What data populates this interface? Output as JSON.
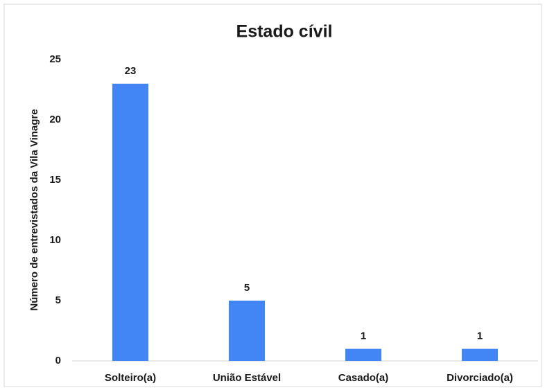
{
  "chart_data": {
    "type": "bar",
    "title": "Estado cívil",
    "y_label": "Número de entrevistados da Vila Vinagre",
    "categories": [
      "Solteiro(a)",
      "União Estável",
      "Casado(a)",
      "Divorciado(a)"
    ],
    "values": [
      23,
      5,
      1,
      1
    ],
    "color": "#4285f4",
    "ylim": [
      0,
      25
    ],
    "yticks": [
      0,
      5,
      10,
      15,
      20,
      25
    ],
    "grid": false,
    "data_labels": true
  }
}
